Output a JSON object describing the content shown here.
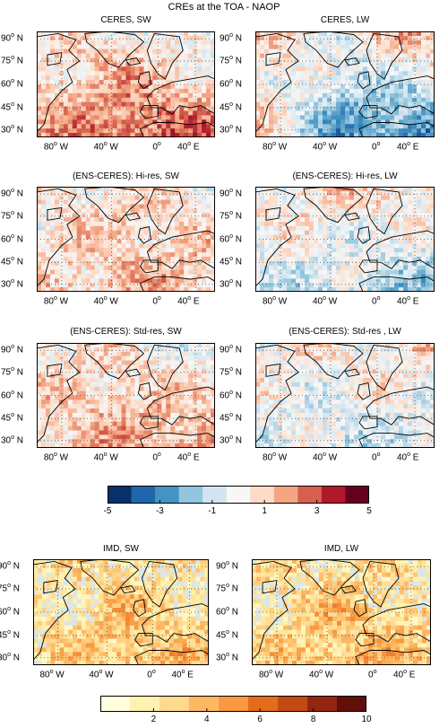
{
  "figure_title": "CREs at the TOA - NAOP",
  "panels": [
    {
      "title": "CERES, SW",
      "palette": "diverging",
      "pattern": [
        0.15,
        -0.3,
        0.35,
        0.6,
        1.0
      ]
    },
    {
      "title": "CERES, LW",
      "palette": "diverging",
      "pattern": [
        0.3,
        0.7,
        -0.6,
        0.2,
        -1.2
      ]
    },
    {
      "title": "(ENS-CERES): Hi-res, SW",
      "palette": "diverging",
      "pattern": [
        0.1,
        0.1,
        0.2,
        0.3,
        0.5
      ]
    },
    {
      "title": "(ENS-CERES): Hi-res, LW",
      "palette": "diverging",
      "pattern": [
        0.15,
        0.25,
        0.1,
        -0.2,
        -0.6
      ]
    },
    {
      "title": "(ENS-CERES): Std-res, SW",
      "palette": "diverging",
      "pattern": [
        0.2,
        -0.15,
        0.2,
        0.35,
        0.7
      ]
    },
    {
      "title": "(ENS-CERES): Std-res , LW",
      "palette": "diverging",
      "pattern": [
        0.1,
        0.35,
        -0.1,
        -0.1,
        -0.3
      ]
    },
    {
      "title": "IMD, SW",
      "palette": "sequential",
      "pattern": [
        0.2,
        0.15,
        0.35,
        0.4,
        0.7
      ]
    },
    {
      "title": "IMD, LW",
      "palette": "sequential",
      "pattern": [
        0.3,
        0.2,
        0.35,
        0.45,
        0.7
      ]
    }
  ],
  "axes": {
    "lat_ticks": [
      "90",
      "75",
      "60",
      "45",
      "30"
    ],
    "lat_suffix": "N",
    "lon_ticks": [
      "80",
      "40",
      "0",
      "40"
    ],
    "lon_suffix": [
      "W",
      "W",
      "",
      "E"
    ],
    "degree_mark": "o"
  },
  "colorbar_diverging": {
    "range": [
      -5,
      5
    ],
    "tick_labels": [
      "-5",
      "-3",
      "-1",
      "1",
      "3",
      "5"
    ],
    "colors": [
      "#08306b",
      "#2166ac",
      "#4393c3",
      "#92c5de",
      "#d1e5f0",
      "#f7f7f7",
      "#fddbc7",
      "#f4a582",
      "#d6604d",
      "#b2182b",
      "#67001f"
    ]
  },
  "colorbar_sequential": {
    "range": [
      0,
      10
    ],
    "tick_labels": [
      "2",
      "4",
      "6",
      "8",
      "10"
    ],
    "colors": [
      "#ffffdd",
      "#fff2b0",
      "#fed98e",
      "#fdb863",
      "#f99840",
      "#e66b1b",
      "#c44a15",
      "#94260f",
      "#600f0a"
    ]
  },
  "colors": {
    "land_outline": "#000000",
    "grid": "#555555",
    "no_data_bg": "#dbe7e6"
  }
}
